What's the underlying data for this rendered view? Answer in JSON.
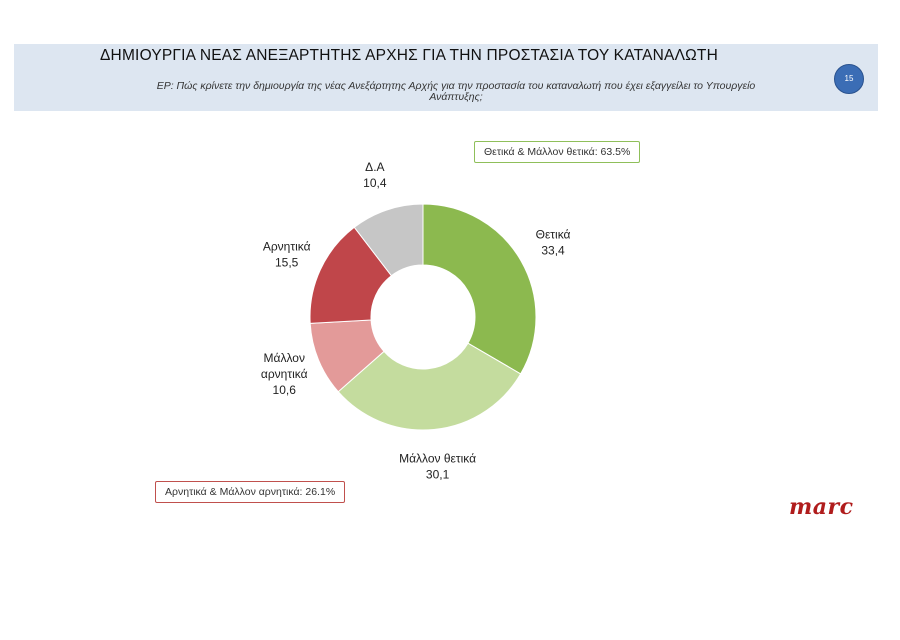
{
  "header": {
    "title": "ΔΗΜΙΟΥΡΓΙΑ ΝΕΑΣ ΑΝΕΞΑΡΤΗΤΗΣ ΑΡΧΗΣ ΓΙΑ ΤΗΝ ΠΡΟΣΤΑΣΙΑ ΤΟΥ ΚΑΤΑΝΑΛΩΤΗ",
    "question_line1": "ΕΡ: Πώς κρίνετε την δημιουργία της νέας Ανεξάρτητης Αρχής για την προστασία του καταναλωτή που έχει εξαγγείλει το Υπουργείο",
    "question_line2": "Ανάπτυξης;",
    "page_number": "15"
  },
  "summary": {
    "positive": "Θετικά & Μάλλον θετικά: 63.5%",
    "negative": "Αρνητικά & Μάλλον αρνητικά: 26.1%"
  },
  "logo": "marc",
  "chart_data": {
    "type": "pie",
    "donut": true,
    "slices": [
      {
        "label": "Θετικά",
        "value": 33.4,
        "value_label": "33,4",
        "color": "#8cb94f"
      },
      {
        "label": "Μάλλον θετικά",
        "value": 30.1,
        "value_label": "30,1",
        "color": "#c4dc9e"
      },
      {
        "label": "Μάλλον αρνητικά",
        "value": 10.6,
        "value_label": "10,6",
        "color": "#e39a99"
      },
      {
        "label": "Αρνητικά",
        "value": 15.5,
        "value_label": "15,5",
        "color": "#c0464a"
      },
      {
        "label": "Δ.Α",
        "value": 10.4,
        "value_label": "10,4",
        "color": "#c6c6c6"
      }
    ]
  }
}
